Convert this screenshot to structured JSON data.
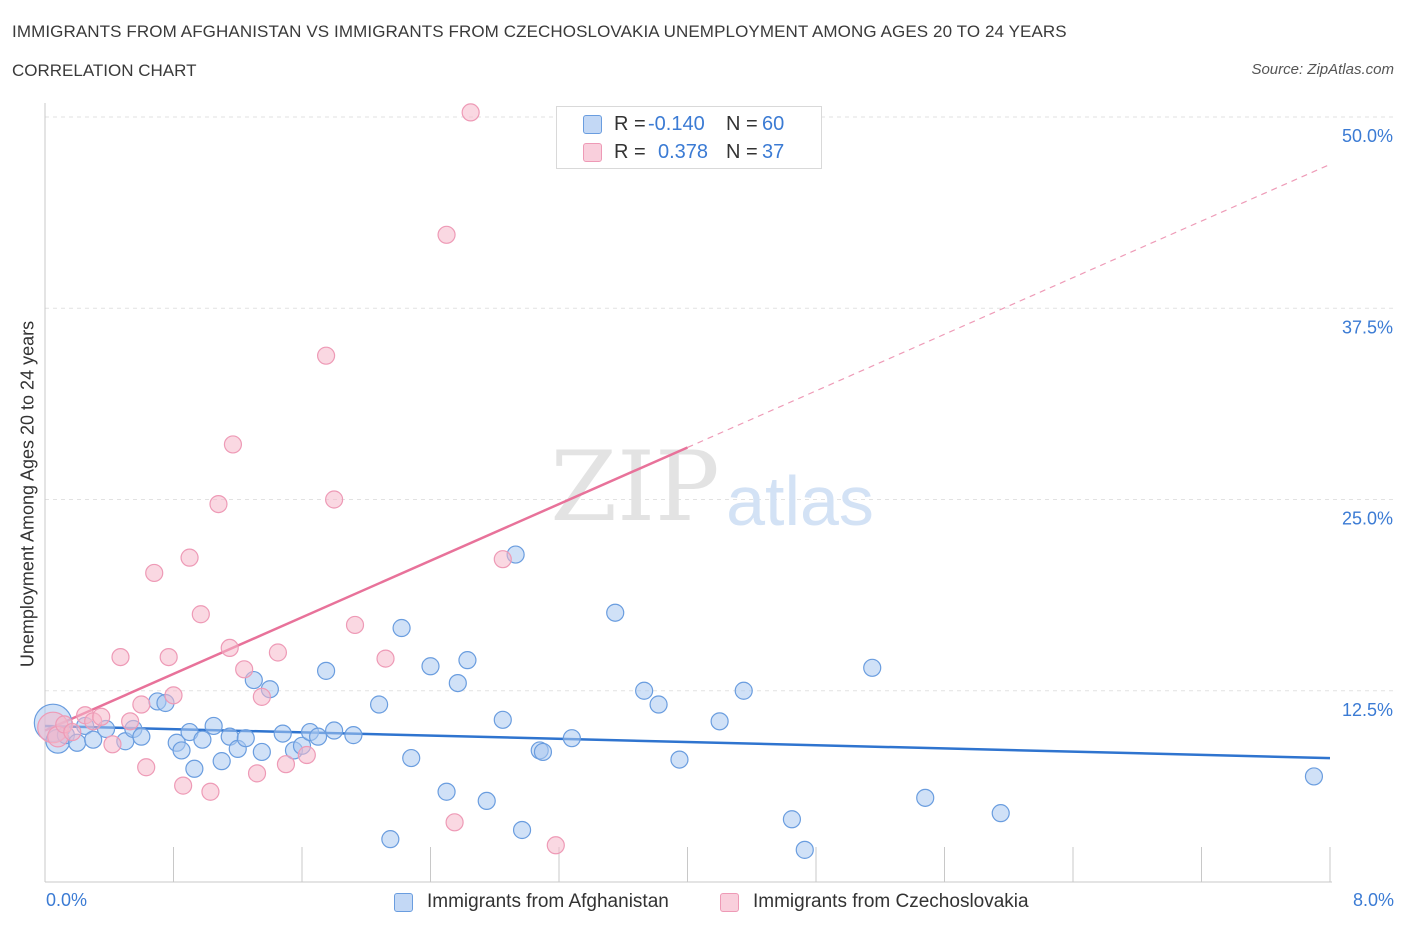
{
  "header": {
    "title": "IMMIGRANTS FROM AFGHANISTAN VS IMMIGRANTS FROM CZECHOSLOVAKIA UNEMPLOYMENT AMONG AGES 20 TO 24 YEARS",
    "subtitle": "CORRELATION CHART",
    "source": "Source: ZipAtlas.com"
  },
  "legend": {
    "rows": [
      {
        "r_label": "R =",
        "r_value": "-0.140",
        "n_label": "N =",
        "n_value": "60"
      },
      {
        "r_label": "R =",
        "r_value": "0.378",
        "n_label": "N =",
        "n_value": "37"
      }
    ]
  },
  "bottom_legend": {
    "series_a": "Immigrants from Afghanistan",
    "series_b": "Immigrants from Czechoslovakia"
  },
  "axes": {
    "x_min_label": "0.0%",
    "x_max_label": "8.0%",
    "y_label": "Unemployment Among Ages 20 to 24 years"
  },
  "watermark": {
    "zip": "ZIP",
    "atlas": "atlas"
  },
  "colors": {
    "blue": "#3b7bd4",
    "blue_fill": "#a9c8f0",
    "pink": "#e8729a",
    "pink_fill": "#f5b8cb"
  },
  "chart_data": {
    "type": "scatter",
    "title": "IMMIGRANTS FROM AFGHANISTAN VS IMMIGRANTS FROM CZECHOSLOVAKIA UNEMPLOYMENT AMONG AGES 20 TO 24 YEARS",
    "xlabel": "",
    "ylabel": "Unemployment Among Ages 20 to 24 years",
    "xlim": [
      0,
      8
    ],
    "ylim": [
      0,
      50
    ],
    "x_ticks": [
      0,
      8
    ],
    "x_tick_labels": [
      "0.0%",
      "8.0%"
    ],
    "y_ticks": [
      12.5,
      25.0,
      37.5,
      50.0
    ],
    "y_tick_labels": [
      "12.5%",
      "25.0%",
      "37.5%",
      "50.0%"
    ],
    "grid": true,
    "legend_position": "top-center",
    "series": [
      {
        "name": "Immigrants from Afghanistan",
        "color": "#3b7bd4",
        "r": -0.14,
        "n": 60,
        "trend": {
          "x": [
            0,
            8
          ],
          "y": [
            10.2,
            8.1
          ],
          "dashed_extension": false
        },
        "points": [
          [
            0.05,
            10.4,
            22
          ],
          [
            0.08,
            9.2,
            14
          ],
          [
            0.13,
            9.6,
            10
          ],
          [
            0.2,
            9.1,
            10
          ],
          [
            0.25,
            10.2,
            10
          ],
          [
            0.3,
            9.3,
            10
          ],
          [
            0.38,
            10.0,
            10
          ],
          [
            0.5,
            9.2,
            10
          ],
          [
            0.55,
            10.0,
            10
          ],
          [
            0.6,
            9.5,
            10
          ],
          [
            0.7,
            11.8,
            10
          ],
          [
            0.75,
            11.7,
            10
          ],
          [
            0.82,
            9.1,
            10
          ],
          [
            0.85,
            8.6,
            10
          ],
          [
            0.9,
            9.8,
            10
          ],
          [
            0.93,
            7.4,
            10
          ],
          [
            0.98,
            9.3,
            10
          ],
          [
            1.05,
            10.2,
            10
          ],
          [
            1.1,
            7.9,
            10
          ],
          [
            1.15,
            9.5,
            10
          ],
          [
            1.2,
            8.7,
            10
          ],
          [
            1.25,
            9.4,
            10
          ],
          [
            1.3,
            13.2,
            10
          ],
          [
            1.35,
            8.5,
            10
          ],
          [
            1.4,
            12.6,
            10
          ],
          [
            1.48,
            9.7,
            10
          ],
          [
            1.55,
            8.6,
            10
          ],
          [
            1.6,
            8.9,
            10
          ],
          [
            1.65,
            9.8,
            10
          ],
          [
            1.7,
            9.5,
            10
          ],
          [
            1.75,
            13.8,
            10
          ],
          [
            1.8,
            9.9,
            10
          ],
          [
            1.92,
            9.6,
            10
          ],
          [
            2.08,
            11.6,
            10
          ],
          [
            2.15,
            2.8,
            10
          ],
          [
            2.22,
            16.6,
            10
          ],
          [
            2.28,
            8.1,
            10
          ],
          [
            2.4,
            14.1,
            10
          ],
          [
            2.5,
            5.9,
            10
          ],
          [
            2.57,
            13.0,
            10
          ],
          [
            2.63,
            14.5,
            10
          ],
          [
            2.75,
            5.3,
            10
          ],
          [
            2.85,
            10.6,
            10
          ],
          [
            2.93,
            21.4,
            10
          ],
          [
            2.97,
            3.4,
            10
          ],
          [
            3.08,
            8.6,
            10
          ],
          [
            3.1,
            8.5,
            10
          ],
          [
            3.28,
            9.4,
            10
          ],
          [
            3.55,
            17.6,
            10
          ],
          [
            3.73,
            12.5,
            10
          ],
          [
            3.82,
            11.6,
            10
          ],
          [
            3.95,
            8.0,
            10
          ],
          [
            4.2,
            10.5,
            10
          ],
          [
            4.35,
            12.5,
            10
          ],
          [
            4.65,
            4.1,
            10
          ],
          [
            4.73,
            2.1,
            10
          ],
          [
            5.15,
            14.0,
            10
          ],
          [
            5.48,
            5.5,
            10
          ],
          [
            5.95,
            4.5,
            10
          ],
          [
            7.9,
            6.9,
            10
          ]
        ]
      },
      {
        "name": "Immigrants from Czechoslovakia",
        "color": "#e8729a",
        "r": 0.378,
        "n": 37,
        "trend": {
          "x": [
            0,
            4.0
          ],
          "y": [
            9.9,
            28.4
          ],
          "dashed_to": [
            8.0,
            46.9
          ]
        },
        "points": [
          [
            0.05,
            10.1,
            18
          ],
          [
            0.08,
            9.5,
            12
          ],
          [
            0.12,
            10.3,
            10
          ],
          [
            0.17,
            9.8,
            10
          ],
          [
            0.25,
            10.9,
            10
          ],
          [
            0.3,
            10.5,
            10
          ],
          [
            0.35,
            10.8,
            10
          ],
          [
            0.42,
            9.0,
            10
          ],
          [
            0.47,
            14.7,
            10
          ],
          [
            0.53,
            10.5,
            10
          ],
          [
            0.6,
            11.6,
            10
          ],
          [
            0.63,
            7.5,
            10
          ],
          [
            0.68,
            20.2,
            10
          ],
          [
            0.77,
            14.7,
            10
          ],
          [
            0.8,
            12.2,
            10
          ],
          [
            0.86,
            6.3,
            10
          ],
          [
            0.9,
            21.2,
            10
          ],
          [
            0.97,
            17.5,
            10
          ],
          [
            1.03,
            5.9,
            10
          ],
          [
            1.08,
            24.7,
            10
          ],
          [
            1.15,
            15.3,
            10
          ],
          [
            1.17,
            28.6,
            10
          ],
          [
            1.24,
            13.9,
            10
          ],
          [
            1.32,
            7.1,
            10
          ],
          [
            1.35,
            12.1,
            10
          ],
          [
            1.45,
            15.0,
            10
          ],
          [
            1.5,
            7.7,
            10
          ],
          [
            1.63,
            8.3,
            10
          ],
          [
            1.75,
            34.4,
            10
          ],
          [
            1.8,
            25.0,
            10
          ],
          [
            1.93,
            16.8,
            10
          ],
          [
            2.12,
            14.6,
            10
          ],
          [
            2.5,
            42.3,
            10
          ],
          [
            2.55,
            3.9,
            10
          ],
          [
            2.65,
            50.3,
            10
          ],
          [
            2.85,
            21.1,
            10
          ],
          [
            3.18,
            2.4,
            10
          ]
        ]
      }
    ]
  }
}
